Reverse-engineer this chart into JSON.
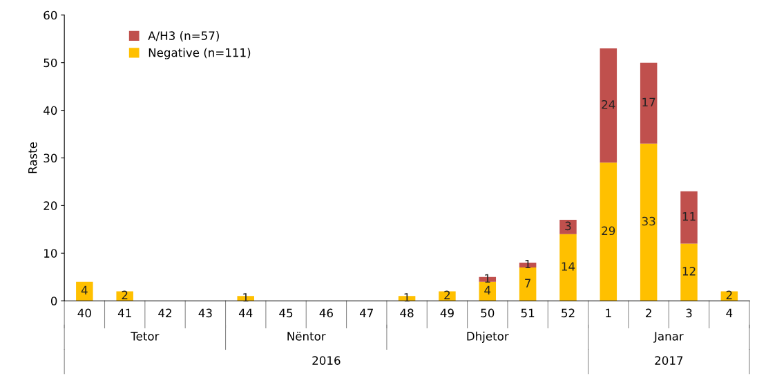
{
  "chart_data": {
    "type": "bar",
    "stacked": true,
    "ylabel": "Raste",
    "categories": [
      "40",
      "41",
      "42",
      "43",
      "44",
      "45",
      "46",
      "47",
      "48",
      "49",
      "50",
      "51",
      "52",
      "1",
      "2",
      "3",
      "4"
    ],
    "series": [
      {
        "name": "Negative (n=111)",
        "color": "#ffc000",
        "values": [
          4,
          2,
          0,
          0,
          1,
          0,
          0,
          0,
          1,
          2,
          4,
          7,
          14,
          29,
          33,
          12,
          2
        ],
        "value_labels": [
          "4",
          "2",
          null,
          null,
          "1",
          null,
          null,
          null,
          "1",
          "2",
          "4",
          "7",
          "14",
          "29",
          "33",
          "12",
          "2"
        ]
      },
      {
        "name": "A/H3 (n=57)",
        "color": "#c0504d",
        "values": [
          0,
          0,
          0,
          0,
          0,
          0,
          0,
          0,
          0,
          0,
          1,
          1,
          3,
          24,
          17,
          11,
          0
        ],
        "value_labels": [
          null,
          null,
          null,
          null,
          null,
          null,
          null,
          null,
          null,
          null,
          "1",
          "1",
          "3",
          "24",
          "17",
          "11",
          null
        ]
      }
    ],
    "ylim": [
      0,
      60
    ],
    "yticks": [
      0,
      10,
      20,
      30,
      40,
      50,
      60
    ],
    "grid": false,
    "legend": "top left",
    "annotations": [
      "Tetor",
      "Nëntor",
      "Dhjetor",
      "Janar",
      "2016",
      "2017"
    ]
  }
}
